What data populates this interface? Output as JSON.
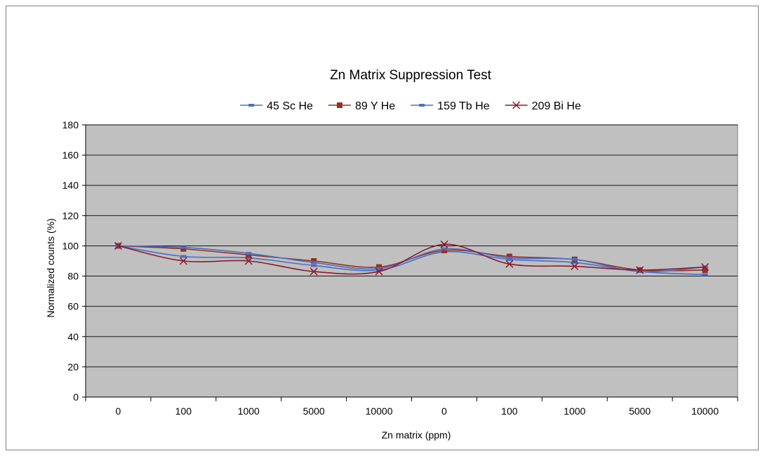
{
  "chart_data": {
    "type": "line",
    "title": "Zn Matrix Suppression Test",
    "xlabel": "Zn matrix (ppm)",
    "ylabel": "Normalized counts (%)",
    "categories": [
      "0",
      "100",
      "1000",
      "5000",
      "10000",
      "0",
      "100",
      "1000",
      "5000",
      "10000"
    ],
    "ylim": [
      0,
      180
    ],
    "yticks": [
      "0",
      "20",
      "40",
      "60",
      "80",
      "100",
      "120",
      "140",
      "160",
      "180"
    ],
    "grid": true,
    "legend_position": "top",
    "plot_background": "#c0c0c0",
    "series": [
      {
        "name": "45 Sc He",
        "color": "#4a6fc4",
        "marker": "dash",
        "smooth": true,
        "values": [
          100,
          93,
          92,
          87,
          84,
          96,
          91,
          89,
          83,
          81
        ]
      },
      {
        "name": "89 Y He",
        "color": "#9a2f1c",
        "marker": "square",
        "smooth": true,
        "values": [
          100,
          98,
          94,
          90,
          86,
          97,
          93,
          91,
          84,
          84
        ]
      },
      {
        "name": "159 Tb He",
        "color": "#4a6fc4",
        "marker": "dash",
        "smooth": true,
        "values": [
          100,
          99,
          95,
          89,
          85,
          98,
          92,
          91,
          83,
          86
        ]
      },
      {
        "name": "209 Bi He",
        "color": "#8b1a2c",
        "marker": "x",
        "smooth": true,
        "values": [
          100,
          90,
          90,
          83,
          83,
          101,
          88,
          86.5,
          84,
          86
        ]
      }
    ]
  }
}
